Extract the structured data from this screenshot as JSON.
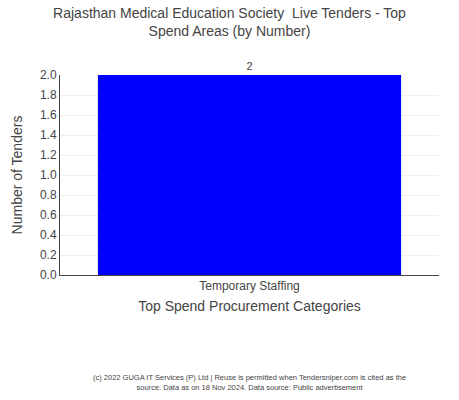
{
  "chart_data": {
    "type": "bar",
    "title": "Rajasthan Medical Education Society  Live Tenders - Top\nSpend Areas (by Number)",
    "categories": [
      "Temporary Staffing"
    ],
    "values": [
      2
    ],
    "color": "#0000ff",
    "ylabel": "Number of Tenders",
    "xlabel": "Top Spend Procurement Categories",
    "ylim": [
      0.0,
      2.0
    ],
    "yticks": [
      {
        "value": 0,
        "label": "0.0"
      },
      0.2,
      0.4,
      0.6,
      0.8,
      {
        "value": 1,
        "label": "1.0"
      },
      1.2,
      1.4,
      1.6,
      1.8,
      {
        "value": 2,
        "label": "2.0"
      }
    ],
    "grid": true,
    "data_labels": true,
    "annotations": [
      "(c) 2022 GUGA IT Services (P) Ltd | Reuse is permitted when Tendersniper.com is cited as the\nsource. Data as on 18 Nov 2024. Data source: Public advertisement"
    ]
  }
}
